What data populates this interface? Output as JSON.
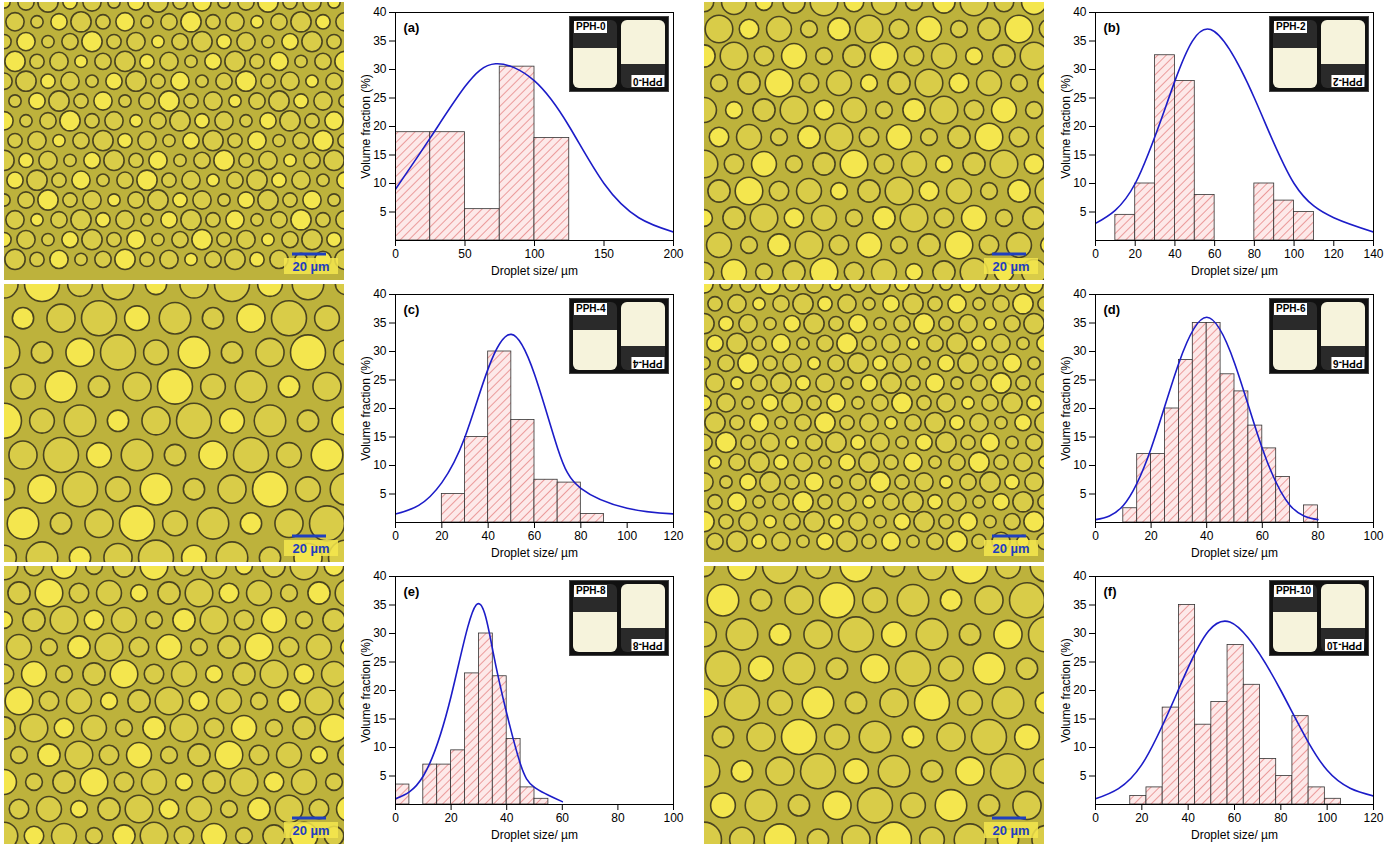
{
  "chart_data": [
    {
      "type": "histogram",
      "panel_label": "(a)",
      "inset_label": "PPH-0",
      "scale_bar_label": "20 µm",
      "xlabel": "Droplet size/ µm",
      "ylabel": "Volume fraction (%)",
      "bins": [
        0,
        25,
        50,
        75,
        100,
        125
      ],
      "values": [
        19,
        19,
        5.5,
        30.5,
        18
      ],
      "color": "#e06666",
      "fit_curve": {
        "x": [
          0,
          25,
          50,
          72,
          100,
          125,
          150,
          175,
          200
        ],
        "values": [
          9,
          18,
          27,
          31,
          28,
          20,
          10,
          4,
          1.5
        ],
        "color": "#1c1cc8"
      },
      "xlim": [
        0,
        200
      ],
      "xticks": [
        0,
        50,
        100,
        150,
        200
      ],
      "ylim": [
        0,
        40
      ],
      "yticks": [
        5,
        10,
        15,
        20,
        25,
        30,
        35,
        40
      ]
    },
    {
      "type": "histogram",
      "panel_label": "(b)",
      "inset_label": "PPH-2",
      "scale_bar_label": "20 µm",
      "xlabel": "Droplet size/ µm",
      "ylabel": "Volume fraction (%)",
      "bins": [
        10,
        20,
        30,
        40,
        50,
        60,
        70,
        80,
        90,
        100,
        110
      ],
      "values": [
        4.5,
        10,
        32.5,
        28,
        8,
        0,
        0,
        10,
        7,
        5
      ],
      "color": "#e06666",
      "fit_curve": {
        "x": [
          0,
          20,
          40,
          58,
          80,
          100,
          120,
          140
        ],
        "values": [
          3,
          10,
          28,
          37,
          25,
          10,
          4,
          1.5
        ],
        "color": "#1c1cc8"
      },
      "xlim": [
        0,
        140
      ],
      "xticks": [
        0,
        20,
        40,
        60,
        80,
        100,
        120,
        140
      ],
      "ylim": [
        0,
        40
      ],
      "yticks": [
        5,
        10,
        15,
        20,
        25,
        30,
        35,
        40
      ]
    },
    {
      "type": "histogram",
      "panel_label": "(c)",
      "inset_label": "PPH-4",
      "scale_bar_label": "20 µm",
      "xlabel": "Droplet size/ µm",
      "ylabel": "Volume fraction (%)",
      "bins": [
        20,
        30,
        40,
        50,
        60,
        70,
        80,
        90
      ],
      "values": [
        5,
        15,
        30,
        18,
        7.5,
        7,
        1.5
      ],
      "color": "#e06666",
      "fit_curve": {
        "x": [
          0,
          10,
          20,
          30,
          40,
          50,
          60,
          70,
          80,
          100,
          120
        ],
        "values": [
          1.5,
          3,
          7,
          15,
          27,
          33,
          26,
          13,
          6,
          2.5,
          1.5
        ],
        "color": "#1c1cc8"
      },
      "xlim": [
        0,
        120
      ],
      "xticks": [
        0,
        20,
        40,
        60,
        80,
        100,
        120
      ],
      "ylim": [
        0,
        40
      ],
      "yticks": [
        5,
        10,
        15,
        20,
        25,
        30,
        35,
        40
      ]
    },
    {
      "type": "histogram",
      "panel_label": "(d)",
      "inset_label": "PPH-6",
      "scale_bar_label": "20 µm",
      "xlabel": "Droplet size/ µm",
      "ylabel": "Volume fraction (%)",
      "bins": [
        10,
        15,
        20,
        25,
        30,
        35,
        40,
        45,
        50,
        55,
        60,
        65,
        70,
        75,
        80
      ],
      "values": [
        2.5,
        12,
        12,
        20,
        28.5,
        35,
        35,
        26,
        23,
        17,
        13,
        8,
        0,
        3
      ],
      "color": "#e06666",
      "fit_curve": {
        "x": [
          0,
          10,
          20,
          30,
          40,
          50,
          60,
          70,
          80
        ],
        "values": [
          0.5,
          3,
          13,
          28,
          36,
          28,
          13,
          3,
          0.5
        ],
        "color": "#1c1cc8"
      },
      "xlim": [
        0,
        100
      ],
      "xticks": [
        0,
        20,
        40,
        60,
        80,
        100
      ],
      "ylim": [
        0,
        40
      ],
      "yticks": [
        5,
        10,
        15,
        20,
        25,
        30,
        35,
        40
      ]
    },
    {
      "type": "histogram",
      "panel_label": "(e)",
      "inset_label": "PPH-8",
      "scale_bar_label": "20 µm",
      "xlabel": "Droplet size/ µm",
      "ylabel": "Volume fraction (%)",
      "bins": [
        0,
        5,
        10,
        15,
        20,
        25,
        30,
        35,
        40,
        45,
        50,
        55
      ],
      "values": [
        3.5,
        0,
        7,
        7,
        9.5,
        23,
        30,
        22.5,
        11.5,
        3,
        1
      ],
      "color": "#e06666",
      "fit_curve": {
        "x": [
          0,
          10,
          20,
          29,
          35,
          40,
          45,
          50,
          60
        ],
        "values": [
          1,
          5,
          19,
          35,
          27,
          16,
          7,
          3,
          0.5
        ],
        "color": "#1c1cc8"
      },
      "xlim": [
        0,
        100
      ],
      "xticks": [
        0,
        20,
        40,
        60,
        80,
        100
      ],
      "ylim": [
        0,
        40
      ],
      "yticks": [
        5,
        10,
        15,
        20,
        25,
        30,
        35,
        40
      ]
    },
    {
      "type": "histogram",
      "panel_label": "(f)",
      "inset_label": "PPH-10",
      "scale_bar_label": "20 µm",
      "xlabel": "Droplet size/ µm",
      "ylabel": "Volume fraction (%)",
      "bins": [
        15,
        22,
        29,
        36,
        43,
        50,
        57,
        64,
        71,
        78,
        85,
        92,
        99,
        106
      ],
      "values": [
        1.5,
        3,
        17,
        35,
        14,
        18,
        28,
        21,
        8,
        5,
        15.5,
        3,
        1
      ],
      "color": "#e06666",
      "fit_curve": {
        "x": [
          0,
          20,
          40,
          58,
          80,
          100,
          120
        ],
        "values": [
          1,
          7,
          24,
          32,
          20,
          6,
          1.5
        ],
        "color": "#1c1cc8"
      },
      "xlim": [
        0,
        120
      ],
      "xticks": [
        0,
        20,
        40,
        60,
        80,
        100,
        120
      ],
      "ylim": [
        0,
        40
      ],
      "yticks": [
        5,
        10,
        15,
        20,
        25,
        30,
        35,
        40
      ]
    }
  ]
}
